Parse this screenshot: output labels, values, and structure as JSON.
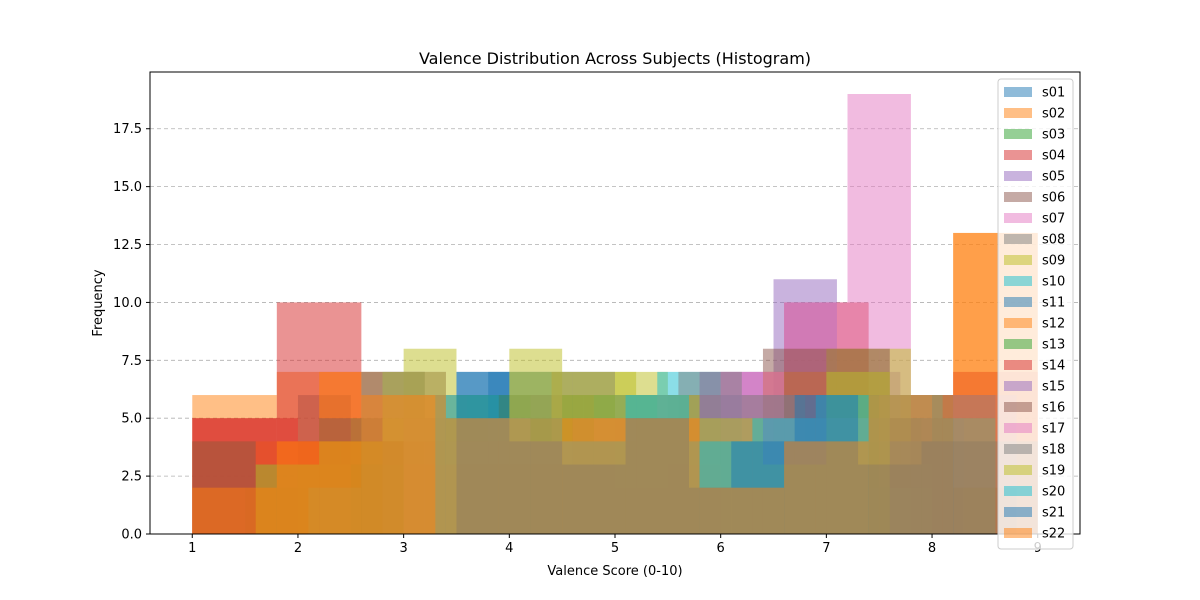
{
  "chart_data": {
    "type": "bar",
    "title": "Valence Distribution Across Subjects (Histogram)",
    "xlabel": "Valence Score (0-10)",
    "ylabel": "Frequency",
    "xlim": [
      0.6,
      9.4
    ],
    "ylim": [
      0,
      19.95
    ],
    "xticks": [
      "1",
      "2",
      "3",
      "4",
      "5",
      "6",
      "7",
      "8",
      "9"
    ],
    "yticks": [
      "0.0",
      "2.5",
      "5.0",
      "7.5",
      "10.0",
      "12.5",
      "15.0",
      "17.5"
    ],
    "grid": "y dashed",
    "legend_position": "top-right",
    "bar_opacity": 0.5,
    "series": [
      {
        "name": "s01",
        "color": "#1f77b4",
        "bins": [
          [
            2.0,
            2.5,
            6
          ],
          [
            2.5,
            3.0,
            4
          ],
          [
            3.0,
            3.5,
            5
          ],
          [
            3.5,
            4.0,
            7
          ],
          [
            4.0,
            4.5,
            5
          ],
          [
            4.5,
            5.0,
            3
          ],
          [
            5.0,
            5.5,
            4
          ],
          [
            5.5,
            6.0,
            5
          ],
          [
            6.0,
            6.5,
            4
          ],
          [
            6.5,
            7.0,
            3
          ]
        ]
      },
      {
        "name": "s02",
        "color": "#ff7f0e",
        "bins": [
          [
            1.0,
            1.8,
            6
          ],
          [
            1.8,
            2.6,
            7
          ],
          [
            2.6,
            3.4,
            3
          ],
          [
            3.4,
            4.2,
            4
          ],
          [
            4.2,
            5.0,
            4
          ],
          [
            5.0,
            5.8,
            5
          ],
          [
            5.8,
            6.6,
            3
          ],
          [
            6.6,
            7.4,
            8
          ],
          [
            7.4,
            8.2,
            6
          ],
          [
            8.2,
            9.0,
            13
          ]
        ]
      },
      {
        "name": "s03",
        "color": "#2ca02c",
        "bins": [
          [
            1.5,
            2.3,
            2
          ],
          [
            2.3,
            3.1,
            4
          ],
          [
            3.1,
            3.9,
            5
          ],
          [
            3.9,
            4.7,
            6
          ],
          [
            4.7,
            5.5,
            6
          ],
          [
            5.5,
            6.3,
            5
          ],
          [
            6.3,
            7.1,
            4
          ],
          [
            7.1,
            7.9,
            5
          ]
        ]
      },
      {
        "name": "s04",
        "color": "#d62728",
        "bins": [
          [
            1.0,
            1.8,
            5
          ],
          [
            1.8,
            2.6,
            10
          ],
          [
            2.6,
            3.4,
            4
          ],
          [
            3.4,
            4.2,
            3
          ],
          [
            4.2,
            5.0,
            5
          ],
          [
            5.0,
            5.8,
            4
          ],
          [
            5.8,
            6.6,
            3
          ],
          [
            6.6,
            7.4,
            10
          ],
          [
            7.4,
            8.2,
            6
          ],
          [
            8.2,
            9.0,
            7
          ]
        ]
      },
      {
        "name": "s05",
        "color": "#9467bd",
        "bins": [
          [
            3.5,
            4.1,
            3
          ],
          [
            4.1,
            4.7,
            4
          ],
          [
            4.7,
            5.3,
            5
          ],
          [
            5.3,
            5.9,
            4
          ],
          [
            5.9,
            6.5,
            5
          ],
          [
            6.5,
            7.1,
            11
          ],
          [
            7.1,
            7.7,
            7
          ],
          [
            7.7,
            8.3,
            5
          ]
        ]
      },
      {
        "name": "s06",
        "color": "#8c564b",
        "bins": [
          [
            2.0,
            2.6,
            2
          ],
          [
            2.6,
            3.2,
            7
          ],
          [
            3.2,
            3.8,
            3
          ],
          [
            3.8,
            4.4,
            6
          ],
          [
            4.4,
            5.0,
            3
          ],
          [
            5.0,
            5.6,
            4
          ],
          [
            5.6,
            6.2,
            2
          ],
          [
            6.2,
            6.8,
            6
          ],
          [
            6.8,
            7.4,
            3
          ],
          [
            7.4,
            8.0,
            2
          ]
        ]
      },
      {
        "name": "s07",
        "color": "#e377c2",
        "bins": [
          [
            3.0,
            3.6,
            6
          ],
          [
            3.6,
            4.2,
            5
          ],
          [
            4.2,
            4.8,
            6
          ],
          [
            4.8,
            5.4,
            5
          ],
          [
            5.4,
            6.0,
            5
          ],
          [
            6.0,
            6.6,
            7
          ],
          [
            6.6,
            7.2,
            10
          ],
          [
            7.2,
            7.8,
            19
          ]
        ]
      },
      {
        "name": "s08",
        "color": "#7f7f7f",
        "bins": [
          [
            2.6,
            3.2,
            4
          ],
          [
            3.2,
            3.8,
            6
          ],
          [
            3.8,
            4.4,
            5
          ],
          [
            4.4,
            5.0,
            7
          ],
          [
            5.0,
            5.6,
            6
          ],
          [
            5.6,
            6.2,
            6
          ],
          [
            6.2,
            6.8,
            4
          ],
          [
            6.8,
            7.4,
            5
          ],
          [
            7.4,
            8.0,
            3
          ]
        ]
      },
      {
        "name": "s09",
        "color": "#bcbd22",
        "bins": [
          [
            2.0,
            2.5,
            3
          ],
          [
            2.5,
            3.0,
            5
          ],
          [
            3.0,
            3.5,
            8
          ],
          [
            3.5,
            4.0,
            6
          ],
          [
            4.0,
            4.5,
            8
          ],
          [
            4.5,
            5.0,
            6
          ],
          [
            5.0,
            5.5,
            7
          ],
          [
            5.5,
            6.0,
            5
          ],
          [
            6.0,
            6.5,
            4
          ],
          [
            6.5,
            7.0,
            5
          ],
          [
            7.0,
            7.5,
            8
          ],
          [
            7.5,
            7.8,
            8
          ]
        ]
      },
      {
        "name": "s10",
        "color": "#17becf",
        "bins": [
          [
            3.0,
            3.6,
            4
          ],
          [
            3.6,
            4.2,
            5
          ],
          [
            4.2,
            4.8,
            4
          ],
          [
            4.8,
            5.4,
            6
          ],
          [
            5.4,
            6.0,
            7
          ],
          [
            6.0,
            6.6,
            4
          ],
          [
            6.6,
            7.2,
            4
          ]
        ]
      },
      {
        "name": "s11",
        "color": "#1f77b4",
        "bins": [
          [
            2.6,
            3.2,
            3
          ],
          [
            3.2,
            3.8,
            4
          ],
          [
            3.8,
            4.4,
            7
          ],
          [
            4.4,
            5.0,
            2
          ],
          [
            5.0,
            5.6,
            5
          ],
          [
            5.6,
            6.2,
            6
          ],
          [
            6.2,
            6.8,
            4
          ],
          [
            6.8,
            7.4,
            5
          ],
          [
            7.4,
            8.0,
            4
          ],
          [
            8.0,
            8.6,
            6
          ]
        ]
      },
      {
        "name": "s12",
        "color": "#ff7f0e",
        "bins": [
          [
            1.0,
            1.6,
            4
          ],
          [
            1.6,
            2.2,
            4
          ],
          [
            2.2,
            2.8,
            7
          ],
          [
            2.8,
            3.4,
            4
          ],
          [
            3.4,
            4.0,
            2
          ],
          [
            4.0,
            4.6,
            4
          ],
          [
            4.6,
            5.2,
            5
          ],
          [
            5.2,
            5.8,
            5
          ],
          [
            5.8,
            6.4,
            4
          ],
          [
            6.4,
            7.0,
            7
          ]
        ]
      },
      {
        "name": "s13",
        "color": "#2ca02c",
        "bins": [
          [
            2.5,
            3.0,
            3
          ],
          [
            3.0,
            3.5,
            5
          ],
          [
            3.5,
            4.0,
            6
          ],
          [
            4.0,
            4.5,
            5
          ],
          [
            4.5,
            5.0,
            6
          ],
          [
            5.0,
            5.5,
            5
          ],
          [
            5.5,
            6.0,
            6
          ],
          [
            6.0,
            6.5,
            4
          ],
          [
            6.5,
            7.0,
            5
          ],
          [
            7.0,
            7.5,
            6
          ]
        ]
      },
      {
        "name": "s14",
        "color": "#d62728",
        "bins": [
          [
            1.0,
            1.4,
            5
          ],
          [
            1.4,
            2.0,
            5
          ],
          [
            2.0,
            2.4,
            4
          ],
          [
            2.4,
            3.0,
            4
          ],
          [
            3.0,
            3.5,
            3
          ],
          [
            3.5,
            4.0,
            4
          ],
          [
            4.0,
            4.5,
            3
          ],
          [
            4.5,
            5.0,
            4
          ],
          [
            5.0,
            5.5,
            2
          ],
          [
            5.5,
            6.0,
            3
          ]
        ]
      },
      {
        "name": "s15",
        "color": "#9467bd",
        "bins": [
          [
            2.8,
            3.4,
            7
          ],
          [
            3.4,
            4.0,
            4
          ],
          [
            4.0,
            4.6,
            4
          ],
          [
            4.6,
            5.2,
            5
          ],
          [
            5.2,
            5.8,
            4
          ],
          [
            5.8,
            6.4,
            7
          ],
          [
            6.4,
            7.0,
            6
          ],
          [
            7.0,
            7.6,
            5
          ],
          [
            7.6,
            8.2,
            4
          ],
          [
            8.2,
            8.8,
            6
          ]
        ]
      },
      {
        "name": "s16",
        "color": "#8c564b",
        "bins": [
          [
            1.0,
            1.6,
            4
          ],
          [
            1.6,
            2.2,
            3
          ],
          [
            2.2,
            2.8,
            5
          ],
          [
            2.8,
            3.4,
            4
          ],
          [
            3.4,
            4.0,
            3
          ],
          [
            4.0,
            4.6,
            3
          ],
          [
            4.6,
            5.2,
            4
          ],
          [
            5.2,
            5.8,
            5
          ],
          [
            5.8,
            6.4,
            4
          ],
          [
            6.4,
            7.0,
            8
          ],
          [
            7.0,
            7.6,
            8
          ],
          [
            7.6,
            8.2,
            5
          ],
          [
            8.2,
            8.8,
            2
          ]
        ]
      },
      {
        "name": "s17",
        "color": "#e377c2",
        "bins": [
          [
            3.0,
            3.6,
            5
          ],
          [
            3.6,
            4.2,
            5
          ],
          [
            4.2,
            4.8,
            4
          ],
          [
            4.8,
            5.4,
            5
          ],
          [
            5.4,
            6.0,
            6
          ],
          [
            6.0,
            6.6,
            7
          ],
          [
            6.6,
            7.4,
            5
          ]
        ]
      },
      {
        "name": "s18",
        "color": "#7f7f7f",
        "bins": [
          [
            2.1,
            2.6,
            2
          ],
          [
            2.6,
            3.2,
            7
          ],
          [
            3.2,
            3.8,
            5
          ],
          [
            3.8,
            4.4,
            4
          ],
          [
            4.4,
            5.0,
            7
          ],
          [
            5.0,
            5.6,
            6
          ],
          [
            5.6,
            6.2,
            7
          ],
          [
            6.2,
            6.8,
            6
          ],
          [
            6.8,
            7.4,
            5
          ],
          [
            7.4,
            8.0,
            2
          ]
        ]
      },
      {
        "name": "s19",
        "color": "#bcbd22",
        "bins": [
          [
            1.6,
            2.2,
            3
          ],
          [
            2.2,
            2.8,
            4
          ],
          [
            2.8,
            3.4,
            7
          ],
          [
            3.4,
            4.0,
            5
          ],
          [
            4.0,
            4.6,
            7
          ],
          [
            4.6,
            5.2,
            7
          ],
          [
            5.2,
            5.8,
            6
          ],
          [
            5.8,
            6.4,
            5
          ],
          [
            6.4,
            7.0,
            3
          ],
          [
            7.0,
            7.6,
            7
          ]
        ]
      },
      {
        "name": "s20",
        "color": "#17becf",
        "bins": [
          [
            3.3,
            3.9,
            6
          ],
          [
            3.9,
            4.5,
            5
          ],
          [
            4.5,
            5.1,
            4
          ],
          [
            5.1,
            5.7,
            6
          ],
          [
            5.7,
            6.3,
            4
          ],
          [
            6.3,
            6.9,
            5
          ],
          [
            6.9,
            7.5,
            6
          ],
          [
            7.5,
            8.1,
            6
          ],
          [
            8.1,
            8.6,
            5
          ]
        ]
      },
      {
        "name": "s21",
        "color": "#1f77b4",
        "bins": [
          [
            3.5,
            4.0,
            7
          ],
          [
            4.0,
            4.5,
            4
          ],
          [
            4.5,
            5.1,
            3
          ],
          [
            5.1,
            5.7,
            5
          ],
          [
            5.7,
            6.1,
            2
          ],
          [
            6.1,
            6.7,
            4
          ],
          [
            6.7,
            7.3,
            6
          ],
          [
            7.3,
            7.9,
            3
          ],
          [
            7.9,
            8.5,
            4
          ],
          [
            8.5,
            9.0,
            4
          ]
        ]
      },
      {
        "name": "s22",
        "color": "#ff7f0e",
        "bins": [
          [
            1.0,
            1.8,
            2
          ],
          [
            1.8,
            2.6,
            4
          ],
          [
            2.6,
            3.4,
            6
          ],
          [
            3.4,
            4.2,
            5
          ],
          [
            4.2,
            5.0,
            5
          ],
          [
            5.0,
            5.8,
            5
          ],
          [
            5.8,
            6.6,
            2
          ],
          [
            6.6,
            7.4,
            4
          ],
          [
            7.4,
            8.2,
            6
          ],
          [
            8.2,
            9.0,
            13
          ]
        ]
      }
    ]
  }
}
